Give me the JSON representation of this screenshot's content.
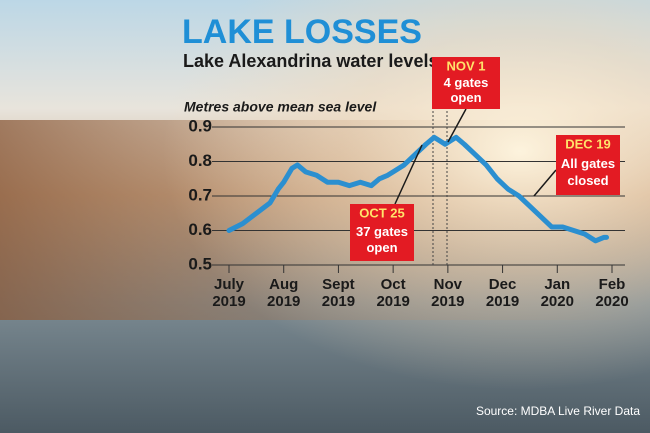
{
  "chart_data": {
    "type": "line",
    "title": "LAKE LOSSES",
    "subtitle": "Lake Alexandrina water levels",
    "y_label": "Metres above mean sea level",
    "source": "Source:  MDBA Live River Data",
    "x": [
      0,
      0.25,
      0.5,
      0.75,
      0.9,
      1.0,
      1.15,
      1.25,
      1.4,
      1.6,
      1.8,
      2.0,
      2.2,
      2.4,
      2.6,
      2.75,
      2.9,
      3.0,
      3.2,
      3.4,
      3.6,
      3.75,
      3.85,
      3.95,
      4.05,
      4.15,
      4.3,
      4.5,
      4.7,
      4.9,
      5.1,
      5.3,
      5.5,
      5.7,
      5.9,
      6.1,
      6.3,
      6.5,
      6.7,
      6.85,
      6.9
    ],
    "series": [
      {
        "color": "#2b8fd0",
        "values": [
          0.6,
          0.62,
          0.65,
          0.68,
          0.72,
          0.74,
          0.78,
          0.79,
          0.77,
          0.76,
          0.74,
          0.74,
          0.73,
          0.74,
          0.73,
          0.75,
          0.76,
          0.77,
          0.79,
          0.82,
          0.85,
          0.87,
          0.86,
          0.85,
          0.86,
          0.87,
          0.85,
          0.82,
          0.79,
          0.75,
          0.72,
          0.7,
          0.67,
          0.64,
          0.61,
          0.61,
          0.6,
          0.59,
          0.57,
          0.58,
          0.58
        ]
      }
    ],
    "xlim": [
      0,
      7
    ],
    "xticks": [
      {
        "value": 0,
        "label": "July 2019"
      },
      {
        "value": 1,
        "label": "Aug 2019"
      },
      {
        "value": 2,
        "label": "Sept 2019"
      },
      {
        "value": 3,
        "label": "Oct 2019"
      },
      {
        "value": 4,
        "label": "Nov 2019"
      },
      {
        "value": 5,
        "label": "Dec 2019"
      },
      {
        "value": 6,
        "label": "Jan 2020"
      },
      {
        "value": 7,
        "label": "Feb 2020"
      }
    ],
    "ylim": [
      0.5,
      0.9
    ],
    "yticks": [
      0.5,
      0.6,
      0.7,
      0.8,
      0.9
    ],
    "grid": true,
    "annotations": [
      {
        "lines": [
          "NOV 1",
          "4 gates",
          "open"
        ]
      },
      {
        "lines": [
          "OCT 25",
          "37 gates",
          "open"
        ]
      },
      {
        "lines": [
          "DEC 19",
          "All gates",
          "closed"
        ]
      }
    ]
  }
}
